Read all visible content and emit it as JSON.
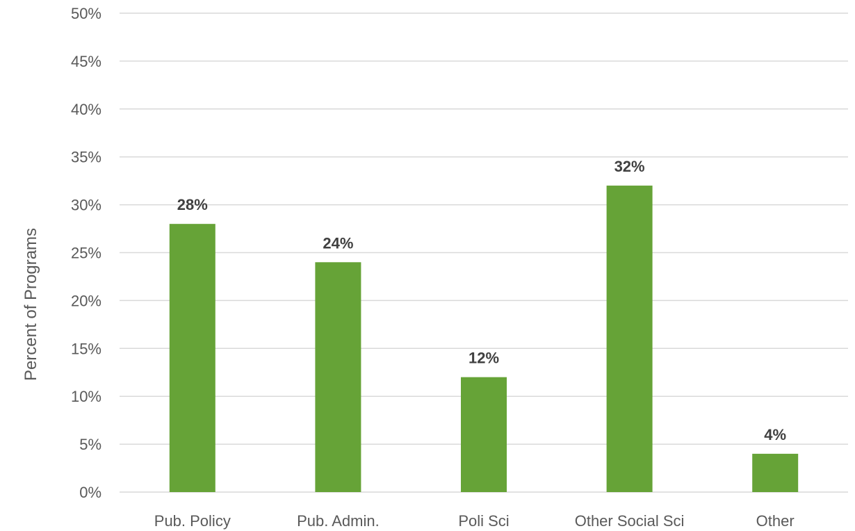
{
  "chart_data": {
    "type": "bar",
    "title": "",
    "xlabel": "",
    "ylabel": "Percent of Programs",
    "ylim": [
      0,
      50
    ],
    "ytick_step": 5,
    "ytick_suffix": "%",
    "grid": true,
    "legend": "none",
    "categories": [
      "Pub. Policy",
      "Pub. Admin.",
      "Poli Sci",
      "Other Social Sci",
      "Other"
    ],
    "values": [
      28,
      24,
      12,
      32,
      4
    ],
    "data_labels": [
      "28%",
      "24%",
      "12%",
      "32%",
      "4%"
    ],
    "bar_color": "#66a337",
    "grid_color": "#d9d9d9"
  }
}
